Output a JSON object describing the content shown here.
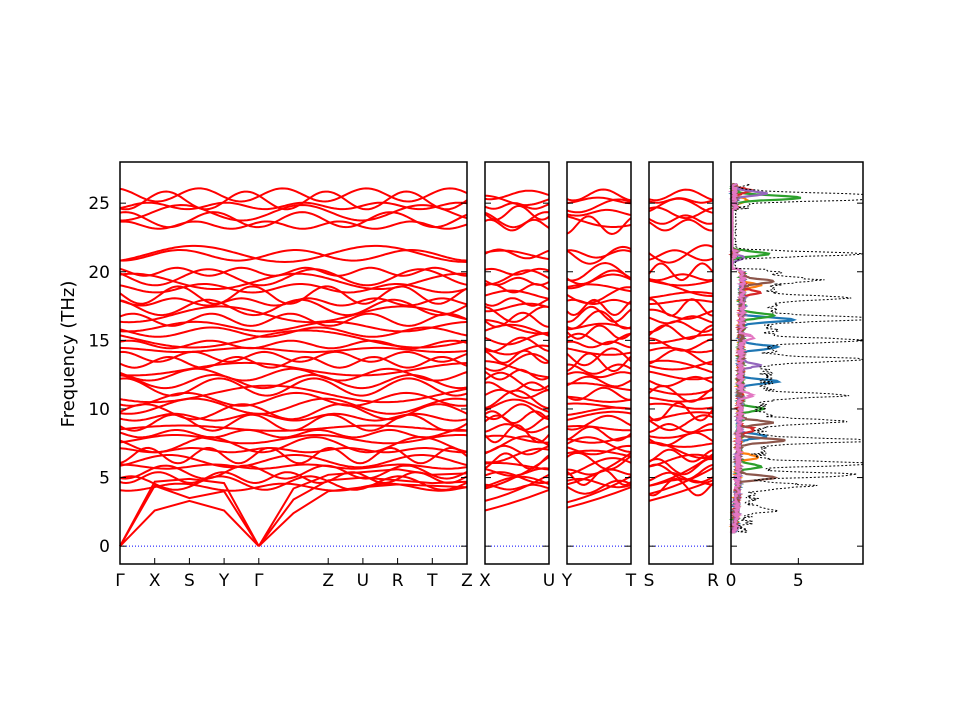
{
  "chart_data": {
    "type": "line",
    "title": "",
    "ylabel": "Frequency (THz)",
    "ylim": [
      -1.3,
      28
    ],
    "yticks": [
      0,
      5,
      10,
      15,
      20,
      25
    ],
    "band_color": "#ff0000",
    "zero_line_color": "#0000ff",
    "panels": [
      {
        "id": "GXSYGZURTZ",
        "labels": [
          "Γ",
          "X",
          "S",
          "Y",
          "Γ",
          "Z",
          "U",
          "R",
          "T",
          "Z"
        ],
        "label_pos": [
          0,
          1,
          2,
          3,
          4,
          6,
          7,
          8,
          9,
          10
        ]
      },
      {
        "id": "XU",
        "labels": [
          "X",
          "U"
        ],
        "label_pos": [
          0,
          1
        ]
      },
      {
        "id": "YT",
        "labels": [
          "Y",
          "T"
        ],
        "label_pos": [
          0,
          1
        ]
      },
      {
        "id": "SR",
        "labels": [
          "S",
          "R"
        ],
        "label_pos": [
          0,
          1
        ]
      }
    ],
    "dos": {
      "xlabel": "",
      "xticks": [
        0,
        5
      ],
      "xlim": [
        0,
        9.8
      ],
      "total_color": "#000000",
      "projected_colors": [
        "#1f77b4",
        "#ff7f0e",
        "#2ca02c",
        "#d62728",
        "#9467bd",
        "#8c564b",
        "#e377c2"
      ],
      "total_peaks": [
        {
          "f": 25.6,
          "v": 9.4
        },
        {
          "f": 25.3,
          "v": 8.6
        },
        {
          "f": 21.3,
          "v": 9.2
        },
        {
          "f": 19.4,
          "v": 3.2
        },
        {
          "f": 18.1,
          "v": 5.4
        },
        {
          "f": 16.6,
          "v": 9.4
        },
        {
          "f": 15.0,
          "v": 7.2
        },
        {
          "f": 13.6,
          "v": 7.6
        },
        {
          "f": 11.0,
          "v": 6.0
        },
        {
          "f": 9.1,
          "v": 6.6
        },
        {
          "f": 7.7,
          "v": 9.0
        },
        {
          "f": 6.0,
          "v": 9.4
        },
        {
          "f": 5.2,
          "v": 7.6
        },
        {
          "f": 4.4,
          "v": 4.2
        },
        {
          "f": 2.6,
          "v": 1.6
        }
      ],
      "projected_peaks": [
        [
          {
            "f": 16.5,
            "v": 4.0
          },
          {
            "f": 14.5,
            "v": 2.8
          },
          {
            "f": 12.0,
            "v": 2.8
          },
          {
            "f": 8.0,
            "v": 2.0
          }
        ],
        [
          {
            "f": 25.2,
            "v": 1.0
          },
          {
            "f": 6.5,
            "v": 1.6
          },
          {
            "f": 19.0,
            "v": 1.4
          }
        ],
        [
          {
            "f": 25.4,
            "v": 5.0
          },
          {
            "f": 21.3,
            "v": 2.6
          },
          {
            "f": 16.8,
            "v": 2.4
          },
          {
            "f": 10.0,
            "v": 1.8
          },
          {
            "f": 5.8,
            "v": 1.8
          }
        ],
        [
          {
            "f": 25.9,
            "v": 1.2
          },
          {
            "f": 18.5,
            "v": 1.2
          },
          {
            "f": 8.5,
            "v": 1.2
          }
        ],
        [
          {
            "f": 25.7,
            "v": 2.4
          },
          {
            "f": 13.2,
            "v": 1.4
          },
          {
            "f": 21.0,
            "v": 0.8
          }
        ],
        [
          {
            "f": 19.3,
            "v": 2.4
          },
          {
            "f": 9.0,
            "v": 2.4
          },
          {
            "f": 7.7,
            "v": 3.4
          },
          {
            "f": 5.0,
            "v": 2.8
          }
        ],
        [
          {
            "f": 15.2,
            "v": 1.0
          },
          {
            "f": 11.0,
            "v": 0.8
          }
        ]
      ]
    }
  }
}
